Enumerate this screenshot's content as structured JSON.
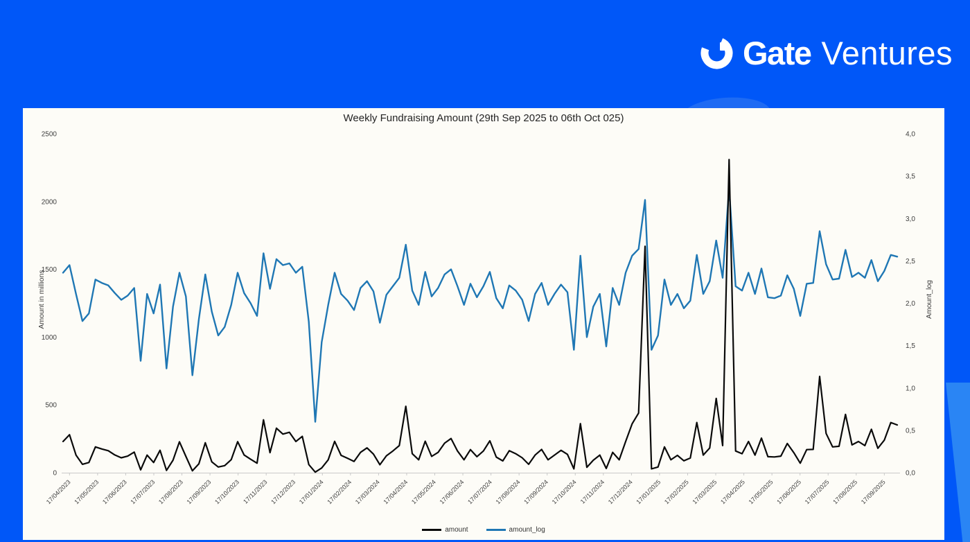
{
  "brand": {
    "name_bold": "Gate",
    "name_light": "Ventures",
    "icon": "gate-logo-icon",
    "text_color": "#ffffff"
  },
  "page": {
    "background_color": "#0057f8",
    "panel_color": "#fdfcf7",
    "accent_swoosh_color": "#2a85f4"
  },
  "chart_data": {
    "type": "line",
    "title": "Weekly Fundraising Amount (29th Sep 2025 to 06th Oct 025)",
    "xlabel": "",
    "ylabel_left": "Amount in millions",
    "ylabel_right": "Amount_log",
    "grid": false,
    "legend_position": "bottom",
    "y_left_range": [
      0,
      2500
    ],
    "y_right_range": [
      0,
      4
    ],
    "y_left_ticks": [
      "2500",
      "2000",
      "1500",
      "1000",
      "500",
      "0"
    ],
    "y_right_ticks": [
      "4,0",
      "3,5",
      "3,0",
      "2,5",
      "2,0",
      "1,5",
      "1,0",
      "0,5",
      "0,0"
    ],
    "x_tick_labels": [
      "17/04/2023",
      "17/05/2023",
      "17/06/2023",
      "17/07/2023",
      "17/08/2023",
      "17/09/2023",
      "17/10/2023",
      "17/11/2023",
      "17/12/2023",
      "17/01/2024",
      "17/02/2024",
      "17/03/2024",
      "17/04/2024",
      "17/05/2024",
      "17/06/2024",
      "17/07/2024",
      "17/08/2024",
      "17/09/2024",
      "17/10/2024",
      "17/11/2024",
      "17/12/2024",
      "17/01/2025",
      "17/02/2025",
      "17/03/2025",
      "17/04/2025",
      "17/05/2025",
      "17/06/2025",
      "17/07/2025",
      "17/08/2025",
      "17/09/2025"
    ],
    "series": [
      {
        "name": "amount",
        "axis": "left",
        "color": "#0a0a0a",
        "values": [
          230,
          280,
          130,
          62,
          75,
          190,
          175,
          162,
          131,
          110,
          122,
          152,
          21,
          130,
          75,
          165,
          17,
          92,
          228,
          120,
          14,
          65,
          221,
          80,
          42,
          52,
          96,
          229,
          131,
          99,
          70,
          390,
          148,
          328,
          285,
          298,
          230,
          268,
          60,
          4,
          35,
          95,
          231,
          128,
          106,
          83,
          150,
          183,
          137,
          59,
          125,
          160,
          200,
          490,
          140,
          95,
          232,
          120,
          150,
          218,
          252,
          160,
          95,
          170,
          118,
          160,
          235,
          115,
          87,
          162,
          140,
          110,
          62,
          130,
          172,
          95,
          130,
          165,
          135,
          28,
          362,
          40,
          92,
          130,
          31,
          150,
          95,
          230,
          360,
          440,
          1670,
          28,
          42,
          190,
          95,
          128,
          88,
          108,
          370,
          130,
          182,
          548,
          200,
          2310,
          160,
          140,
          230,
          130,
          255,
          118,
          116,
          122,
          215,
          148,
          70,
          170,
          172,
          710,
          290,
          190,
          195,
          430,
          205,
          230,
          200,
          320,
          180,
          240,
          370,
          352
        ]
      },
      {
        "name": "amount_log",
        "axis": "right",
        "color": "#1f77b4",
        "values": [
          2.36,
          2.45,
          2.11,
          1.79,
          1.88,
          2.28,
          2.24,
          2.21,
          2.12,
          2.04,
          2.09,
          2.18,
          1.32,
          2.11,
          1.88,
          2.22,
          1.23,
          1.96,
          2.36,
          2.08,
          1.15,
          1.81,
          2.34,
          1.9,
          1.62,
          1.72,
          1.98,
          2.36,
          2.12,
          2.0,
          1.85,
          2.59,
          2.17,
          2.52,
          2.45,
          2.47,
          2.36,
          2.43,
          1.78,
          0.6,
          1.54,
          1.98,
          2.36,
          2.11,
          2.03,
          1.92,
          2.18,
          2.26,
          2.14,
          1.77,
          2.1,
          2.2,
          2.3,
          2.69,
          2.15,
          1.98,
          2.37,
          2.08,
          2.18,
          2.34,
          2.4,
          2.2,
          1.98,
          2.23,
          2.07,
          2.2,
          2.37,
          2.06,
          1.94,
          2.21,
          2.15,
          2.04,
          1.79,
          2.11,
          2.24,
          1.98,
          2.11,
          2.22,
          2.13,
          1.45,
          2.56,
          1.6,
          1.96,
          2.11,
          1.49,
          2.18,
          1.98,
          2.36,
          2.56,
          2.64,
          3.22,
          1.45,
          1.62,
          2.28,
          1.98,
          2.11,
          1.94,
          2.03,
          2.57,
          2.11,
          2.26,
          2.74,
          2.3,
          3.36,
          2.2,
          2.15,
          2.36,
          2.11,
          2.41,
          2.07,
          2.06,
          2.09,
          2.33,
          2.17,
          1.85,
          2.23,
          2.24,
          2.85,
          2.46,
          2.28,
          2.29,
          2.63,
          2.31,
          2.36,
          2.3,
          2.51,
          2.26,
          2.38,
          2.57,
          2.55
        ]
      }
    ]
  }
}
